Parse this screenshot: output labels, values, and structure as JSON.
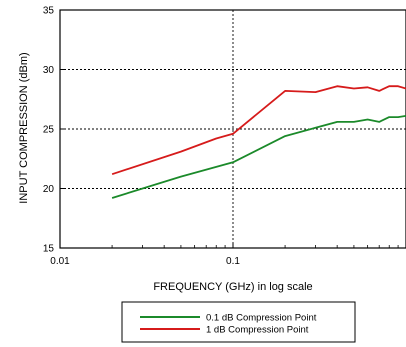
{
  "chart_data": {
    "type": "line",
    "title": "",
    "xlabel": "FREQUENCY (GHz) in log scale",
    "ylabel": "INPUT COMPRESSION (dBm)",
    "xscale": "log",
    "xlim": [
      0.01,
      1
    ],
    "ylim": [
      15,
      35
    ],
    "x_ticks": [
      {
        "value": 0.01,
        "label": "0.01"
      },
      {
        "value": 0.1,
        "label": "0.1"
      }
    ],
    "y_ticks": [
      {
        "value": 15,
        "label": "15"
      },
      {
        "value": 20,
        "label": "20"
      },
      {
        "value": 25,
        "label": "25"
      },
      {
        "value": 30,
        "label": "30"
      },
      {
        "value": 35,
        "label": "35"
      }
    ],
    "grid": "dotted, at 0.1 GHz and 20, 25, 30 dBm",
    "legend_position": "bottom-center, outside plot",
    "series": [
      {
        "name": "0.1 dB Compression Point",
        "color": "#1b8a2a",
        "x": [
          0.02,
          0.05,
          0.1,
          0.2,
          0.3,
          0.4,
          0.5,
          0.6,
          0.7,
          0.8,
          0.9,
          1.0
        ],
        "y": [
          19.2,
          21.0,
          22.2,
          24.4,
          25.1,
          25.6,
          25.6,
          25.8,
          25.6,
          26.0,
          26.0,
          26.1
        ]
      },
      {
        "name": "1 dB Compression Point",
        "color": "#d61b1b",
        "x": [
          0.02,
          0.05,
          0.08,
          0.1,
          0.2,
          0.3,
          0.4,
          0.5,
          0.6,
          0.7,
          0.8,
          0.9,
          1.0
        ],
        "y": [
          21.2,
          23.1,
          24.2,
          24.6,
          28.2,
          28.1,
          28.6,
          28.4,
          28.5,
          28.2,
          28.6,
          28.6,
          28.4
        ]
      }
    ]
  }
}
